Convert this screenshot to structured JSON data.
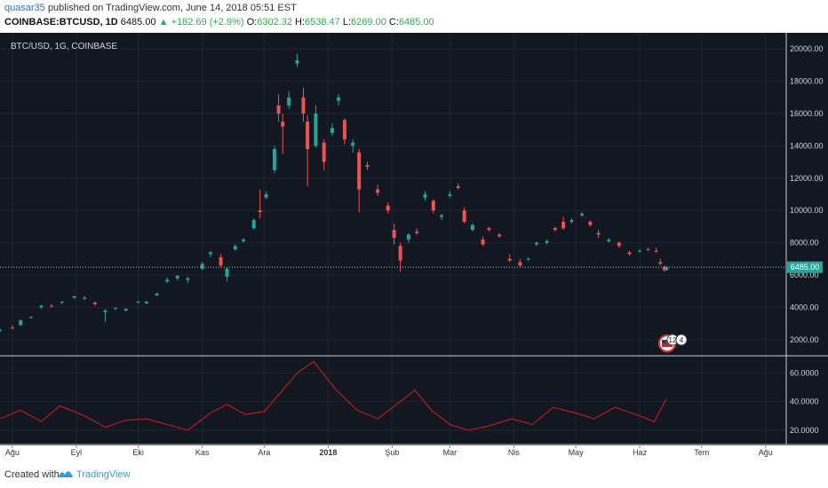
{
  "header": {
    "author": "quasar35",
    "published_text": "published on TradingView.com, June 14, 2018 05:51 EST",
    "symbol": "COINBASE:BTCUSD, 1D",
    "last": "6485.00",
    "change": "▲ +182.69 (+2.9%)",
    "open_label": "O:",
    "open": "6302.32",
    "high_label": "H:",
    "high": "6538.47",
    "low_label": "L:",
    "low": "6269.00",
    "close_label": "C:",
    "close": "6485.00"
  },
  "pane_label": "BTC/USD, 1G, COINBASE",
  "price_badge": "6485.00",
  "event_badges": [
    "12",
    "4"
  ],
  "footer": {
    "created": "Created with",
    "brand": "TradingView"
  },
  "colors": {
    "up": "#26a69a",
    "down": "#ef5350",
    "background": "#131722",
    "indicator": "#b71c1c"
  },
  "chart_data": [
    {
      "type": "candlestick",
      "title": "BTC/USD, 1G, COINBASE",
      "x_ticks": [
        "Ağu",
        "Eyl",
        "Eki",
        "Kas",
        "Ara",
        "2018",
        "Şub",
        "Mar",
        "Nis",
        "May",
        "Haz",
        "Tem",
        "Ağu"
      ],
      "x_range": [
        "2017-07-26",
        "2018-08-11"
      ],
      "y_ticks": [
        "2000.00",
        "4000.00",
        "6000.00",
        "8000.00",
        "10000.00",
        "12000.00",
        "14000.00",
        "16000.00",
        "18000.00",
        "20000.00"
      ],
      "ylim": [
        1000,
        21000
      ],
      "last_price": 6485,
      "grid": true,
      "series": [
        {
          "x": "2017-07-26",
          "o": 2550,
          "h": 2700,
          "l": 2450,
          "c": 2600
        },
        {
          "x": "2017-08-01",
          "o": 2750,
          "h": 2900,
          "l": 2650,
          "c": 2700
        },
        {
          "x": "2017-08-05",
          "o": 2900,
          "h": 3250,
          "l": 2850,
          "c": 3200
        },
        {
          "x": "2017-08-10",
          "o": 3350,
          "h": 3450,
          "l": 3300,
          "c": 3400
        },
        {
          "x": "2017-08-15",
          "o": 4000,
          "h": 4150,
          "l": 3900,
          "c": 4100
        },
        {
          "x": "2017-08-20",
          "o": 4100,
          "h": 4200,
          "l": 4000,
          "c": 4050
        },
        {
          "x": "2017-08-25",
          "o": 4300,
          "h": 4400,
          "l": 4200,
          "c": 4350
        },
        {
          "x": "2017-08-31",
          "o": 4600,
          "h": 4700,
          "l": 4550,
          "c": 4700
        },
        {
          "x": "2017-09-05",
          "o": 4550,
          "h": 4700,
          "l": 4450,
          "c": 4600
        },
        {
          "x": "2017-09-10",
          "o": 4300,
          "h": 4350,
          "l": 4100,
          "c": 4200
        },
        {
          "x": "2017-09-15",
          "o": 3700,
          "h": 3900,
          "l": 3100,
          "c": 3800
        },
        {
          "x": "2017-09-20",
          "o": 3900,
          "h": 4000,
          "l": 3850,
          "c": 3950
        },
        {
          "x": "2017-09-25",
          "o": 3800,
          "h": 3950,
          "l": 3750,
          "c": 3900
        },
        {
          "x": "2017-10-01",
          "o": 4300,
          "h": 4400,
          "l": 4250,
          "c": 4350
        },
        {
          "x": "2017-10-05",
          "o": 4250,
          "h": 4400,
          "l": 4200,
          "c": 4350
        },
        {
          "x": "2017-10-10",
          "o": 4750,
          "h": 4900,
          "l": 4700,
          "c": 4850
        },
        {
          "x": "2017-10-15",
          "o": 5600,
          "h": 5850,
          "l": 5500,
          "c": 5700
        },
        {
          "x": "2017-10-20",
          "o": 5800,
          "h": 6000,
          "l": 5650,
          "c": 5950
        },
        {
          "x": "2017-10-25",
          "o": 5700,
          "h": 5900,
          "l": 5500,
          "c": 5800
        },
        {
          "x": "2017-11-01",
          "o": 6400,
          "h": 6800,
          "l": 6300,
          "c": 6700
        },
        {
          "x": "2017-11-05",
          "o": 7300,
          "h": 7500,
          "l": 7100,
          "c": 7400
        },
        {
          "x": "2017-11-10",
          "o": 7100,
          "h": 7300,
          "l": 6500,
          "c": 6600
        },
        {
          "x": "2017-11-13",
          "o": 5900,
          "h": 6500,
          "l": 5600,
          "c": 6400
        },
        {
          "x": "2017-11-17",
          "o": 7600,
          "h": 7900,
          "l": 7500,
          "c": 7800
        },
        {
          "x": "2017-11-21",
          "o": 8100,
          "h": 8300,
          "l": 8000,
          "c": 8200
        },
        {
          "x": "2017-11-26",
          "o": 8900,
          "h": 9500,
          "l": 8800,
          "c": 9400
        },
        {
          "x": "2017-11-29",
          "o": 10000,
          "h": 11300,
          "l": 9500,
          "c": 9900
        },
        {
          "x": "2017-12-02",
          "o": 10800,
          "h": 11200,
          "l": 10700,
          "c": 11000
        },
        {
          "x": "2017-12-06",
          "o": 12500,
          "h": 14000,
          "l": 12300,
          "c": 13800
        },
        {
          "x": "2017-12-08",
          "o": 16500,
          "h": 17200,
          "l": 15500,
          "c": 16000
        },
        {
          "x": "2017-12-10",
          "o": 15500,
          "h": 16000,
          "l": 13500,
          "c": 15200
        },
        {
          "x": "2017-12-13",
          "o": 16500,
          "h": 17400,
          "l": 16300,
          "c": 17000
        },
        {
          "x": "2017-12-17",
          "o": 19100,
          "h": 19700,
          "l": 18900,
          "c": 19300
        },
        {
          "x": "2017-12-20",
          "o": 17000,
          "h": 17600,
          "l": 15500,
          "c": 16000
        },
        {
          "x": "2017-12-22",
          "o": 15500,
          "h": 15900,
          "l": 11500,
          "c": 13800
        },
        {
          "x": "2017-12-26",
          "o": 14000,
          "h": 16500,
          "l": 13900,
          "c": 16000
        },
        {
          "x": "2017-12-30",
          "o": 14200,
          "h": 14400,
          "l": 12500,
          "c": 13000
        },
        {
          "x": "2018-01-03",
          "o": 14800,
          "h": 15400,
          "l": 14600,
          "c": 15100
        },
        {
          "x": "2018-01-06",
          "o": 16800,
          "h": 17200,
          "l": 16500,
          "c": 17000
        },
        {
          "x": "2018-01-09",
          "o": 15600,
          "h": 15700,
          "l": 14100,
          "c": 14400
        },
        {
          "x": "2018-01-13",
          "o": 14000,
          "h": 14400,
          "l": 13600,
          "c": 14200
        },
        {
          "x": "2018-01-16",
          "o": 13600,
          "h": 13800,
          "l": 9900,
          "c": 11300
        },
        {
          "x": "2018-01-20",
          "o": 12800,
          "h": 13000,
          "l": 12500,
          "c": 12700
        },
        {
          "x": "2018-01-25",
          "o": 11300,
          "h": 11600,
          "l": 10900,
          "c": 11100
        },
        {
          "x": "2018-01-30",
          "o": 10300,
          "h": 10500,
          "l": 9800,
          "c": 10000
        },
        {
          "x": "2018-02-02",
          "o": 8800,
          "h": 9200,
          "l": 7900,
          "c": 8300
        },
        {
          "x": "2018-02-05",
          "o": 7800,
          "h": 8000,
          "l": 6200,
          "c": 6900
        },
        {
          "x": "2018-02-09",
          "o": 8200,
          "h": 8600,
          "l": 8000,
          "c": 8500
        },
        {
          "x": "2018-02-13",
          "o": 8700,
          "h": 8900,
          "l": 8500,
          "c": 8600
        },
        {
          "x": "2018-02-17",
          "o": 10800,
          "h": 11200,
          "l": 10600,
          "c": 11000
        },
        {
          "x": "2018-02-21",
          "o": 10600,
          "h": 10700,
          "l": 9800,
          "c": 10000
        },
        {
          "x": "2018-02-25",
          "o": 9600,
          "h": 9800,
          "l": 9400,
          "c": 9700
        },
        {
          "x": "2018-03-01",
          "o": 10900,
          "h": 11200,
          "l": 10800,
          "c": 11000
        },
        {
          "x": "2018-03-05",
          "o": 11500,
          "h": 11700,
          "l": 11300,
          "c": 11400
        },
        {
          "x": "2018-03-08",
          "o": 10000,
          "h": 10200,
          "l": 9200,
          "c": 9300
        },
        {
          "x": "2018-03-12",
          "o": 8800,
          "h": 9200,
          "l": 8700,
          "c": 9100
        },
        {
          "x": "2018-03-17",
          "o": 8200,
          "h": 8400,
          "l": 7800,
          "c": 7900
        },
        {
          "x": "2018-03-20",
          "o": 8900,
          "h": 9000,
          "l": 8700,
          "c": 8800
        },
        {
          "x": "2018-03-25",
          "o": 8500,
          "h": 8600,
          "l": 8300,
          "c": 8400
        },
        {
          "x": "2018-03-30",
          "o": 7000,
          "h": 7300,
          "l": 6800,
          "c": 6900
        },
        {
          "x": "2018-04-04",
          "o": 6800,
          "h": 7000,
          "l": 6500,
          "c": 6600
        },
        {
          "x": "2018-04-08",
          "o": 7000,
          "h": 7100,
          "l": 6900,
          "c": 7000
        },
        {
          "x": "2018-04-12",
          "o": 7900,
          "h": 8100,
          "l": 7800,
          "c": 8000
        },
        {
          "x": "2018-04-17",
          "o": 8000,
          "h": 8200,
          "l": 7900,
          "c": 8100
        },
        {
          "x": "2018-04-21",
          "o": 8900,
          "h": 9000,
          "l": 8700,
          "c": 8800
        },
        {
          "x": "2018-04-25",
          "o": 9300,
          "h": 9600,
          "l": 8800,
          "c": 8900
        },
        {
          "x": "2018-04-29",
          "o": 9300,
          "h": 9500,
          "l": 9200,
          "c": 9400
        },
        {
          "x": "2018-05-04",
          "o": 9700,
          "h": 9900,
          "l": 9600,
          "c": 9800
        },
        {
          "x": "2018-05-08",
          "o": 9300,
          "h": 9400,
          "l": 9000,
          "c": 9100
        },
        {
          "x": "2018-05-12",
          "o": 8600,
          "h": 8800,
          "l": 8300,
          "c": 8500
        },
        {
          "x": "2018-05-17",
          "o": 8100,
          "h": 8300,
          "l": 8000,
          "c": 8200
        },
        {
          "x": "2018-05-22",
          "o": 8000,
          "h": 8100,
          "l": 7700,
          "c": 7800
        },
        {
          "x": "2018-05-27",
          "o": 7400,
          "h": 7500,
          "l": 7200,
          "c": 7300
        },
        {
          "x": "2018-06-01",
          "o": 7500,
          "h": 7600,
          "l": 7400,
          "c": 7500
        },
        {
          "x": "2018-06-05",
          "o": 7600,
          "h": 7700,
          "l": 7500,
          "c": 7600
        },
        {
          "x": "2018-06-09",
          "o": 7500,
          "h": 7700,
          "l": 7400,
          "c": 7450
        },
        {
          "x": "2018-06-11",
          "o": 6800,
          "h": 7000,
          "l": 6600,
          "c": 6700
        },
        {
          "x": "2018-06-13",
          "o": 6500,
          "h": 6600,
          "l": 6200,
          "c": 6300
        },
        {
          "x": "2018-06-14",
          "o": 6302.32,
          "h": 6538.47,
          "l": 6269.0,
          "c": 6485.0
        }
      ]
    },
    {
      "type": "line",
      "y_ticks": [
        "20.0000",
        "40.0000",
        "60.0000"
      ],
      "ylim": [
        10,
        72
      ],
      "x": [
        "2017-07-26",
        "2017-08-05",
        "2017-08-15",
        "2017-08-24",
        "2017-09-05",
        "2017-09-15",
        "2017-09-25",
        "2017-10-05",
        "2017-10-15",
        "2017-10-25",
        "2017-11-05",
        "2017-11-13",
        "2017-11-22",
        "2017-12-01",
        "2017-12-10",
        "2017-12-17",
        "2017-12-25",
        "2018-01-05",
        "2018-01-15",
        "2018-01-25",
        "2018-02-05",
        "2018-02-12",
        "2018-02-20",
        "2018-03-01",
        "2018-03-10",
        "2018-03-20",
        "2018-03-31",
        "2018-04-10",
        "2018-04-20",
        "2018-05-01",
        "2018-05-10",
        "2018-05-20",
        "2018-06-01",
        "2018-06-08",
        "2018-06-14"
      ],
      "values": [
        28,
        34,
        26,
        37,
        30,
        22,
        27,
        28,
        24,
        20,
        32,
        38,
        31,
        33,
        48,
        60,
        68,
        48,
        34,
        28,
        40,
        48,
        34,
        24,
        20,
        23,
        28,
        24,
        36,
        32,
        28,
        36,
        30,
        26,
        42
      ]
    }
  ]
}
